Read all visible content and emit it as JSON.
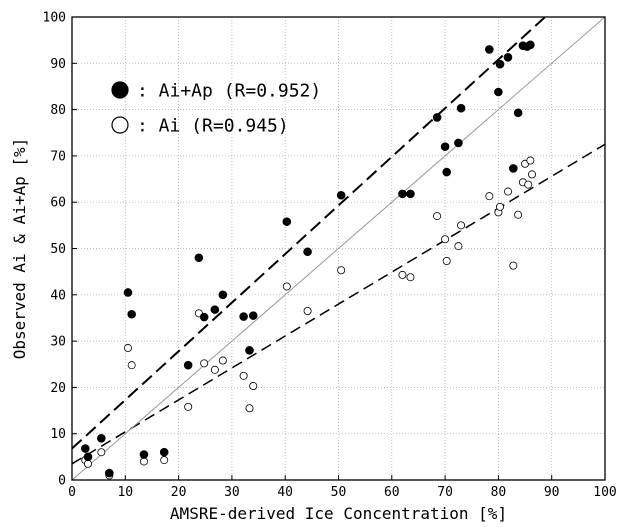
{
  "chart_data": {
    "type": "scatter",
    "xlabel": "AMSRE-derived Ice Concentration [%]",
    "ylabel": "Observed Ai & Ai+Ap [%]",
    "xlim": [
      0,
      100
    ],
    "ylim": [
      0,
      100
    ],
    "x_ticks": [
      0,
      10,
      20,
      30,
      40,
      50,
      60,
      70,
      80,
      90,
      100
    ],
    "y_ticks": [
      0,
      10,
      20,
      30,
      40,
      50,
      60,
      70,
      80,
      90,
      100
    ],
    "grid": true,
    "legend_position": "top-left",
    "series": [
      {
        "name": ": Ai+Ap (R=0.952)",
        "marker": "filled-circle",
        "color": "#000000",
        "fit": {
          "style": "dashed",
          "intercept": 6.8,
          "slope": 1.05
        },
        "points": [
          [
            2.5,
            6.8
          ],
          [
            3.0,
            5.0
          ],
          [
            5.5,
            9.0
          ],
          [
            7.0,
            1.5
          ],
          [
            10.5,
            40.5
          ],
          [
            11.2,
            35.8
          ],
          [
            13.5,
            5.5
          ],
          [
            17.3,
            6.0
          ],
          [
            21.8,
            24.8
          ],
          [
            23.8,
            48.0
          ],
          [
            24.8,
            35.2
          ],
          [
            26.8,
            36.8
          ],
          [
            28.3,
            40.0
          ],
          [
            32.2,
            35.3
          ],
          [
            33.3,
            28.0
          ],
          [
            34.0,
            35.5
          ],
          [
            40.3,
            55.8
          ],
          [
            44.2,
            49.3
          ],
          [
            50.5,
            61.5
          ],
          [
            62.0,
            61.8
          ],
          [
            63.5,
            61.8
          ],
          [
            68.5,
            78.3
          ],
          [
            70.0,
            72.0
          ],
          [
            70.3,
            66.5
          ],
          [
            72.5,
            72.8
          ],
          [
            73.0,
            80.3
          ],
          [
            78.3,
            93.0
          ],
          [
            80.0,
            83.8
          ],
          [
            80.3,
            89.8
          ],
          [
            81.8,
            91.3
          ],
          [
            82.8,
            67.3
          ],
          [
            83.7,
            79.3
          ],
          [
            84.6,
            93.8
          ],
          [
            85.4,
            93.6
          ],
          [
            86.0,
            94.0
          ]
        ]
      },
      {
        "name": ": Ai (R=0.945)",
        "marker": "open-circle",
        "color": "#000000",
        "fit": {
          "style": "dashed",
          "intercept": 3.5,
          "slope": 0.69
        },
        "points": [
          [
            2.5,
            4.3
          ],
          [
            3.0,
            3.5
          ],
          [
            5.5,
            6.0
          ],
          [
            7.0,
            1.0
          ],
          [
            10.5,
            28.5
          ],
          [
            11.2,
            24.8
          ],
          [
            13.5,
            4.0
          ],
          [
            17.3,
            4.3
          ],
          [
            21.8,
            15.8
          ],
          [
            23.8,
            36.0
          ],
          [
            24.8,
            25.2
          ],
          [
            26.8,
            23.8
          ],
          [
            28.3,
            25.8
          ],
          [
            32.2,
            22.5
          ],
          [
            33.3,
            15.5
          ],
          [
            34.0,
            20.3
          ],
          [
            40.3,
            41.8
          ],
          [
            44.2,
            36.5
          ],
          [
            50.5,
            45.3
          ],
          [
            62.0,
            44.3
          ],
          [
            63.5,
            43.8
          ],
          [
            68.5,
            57.0
          ],
          [
            70.0,
            52.0
          ],
          [
            70.3,
            47.3
          ],
          [
            72.5,
            50.5
          ],
          [
            73.0,
            55.0
          ],
          [
            78.3,
            61.3
          ],
          [
            80.0,
            57.8
          ],
          [
            80.3,
            59.0
          ],
          [
            81.8,
            62.3
          ],
          [
            82.8,
            46.3
          ],
          [
            83.7,
            57.3
          ],
          [
            84.6,
            64.3
          ],
          [
            85.0,
            68.3
          ],
          [
            85.6,
            63.8
          ],
          [
            86.0,
            69.0
          ],
          [
            86.3,
            66.0
          ]
        ]
      }
    ],
    "reference_line": {
      "type": "1:1",
      "from": [
        0,
        0
      ],
      "to": [
        100,
        100
      ],
      "color": "#999999"
    }
  }
}
